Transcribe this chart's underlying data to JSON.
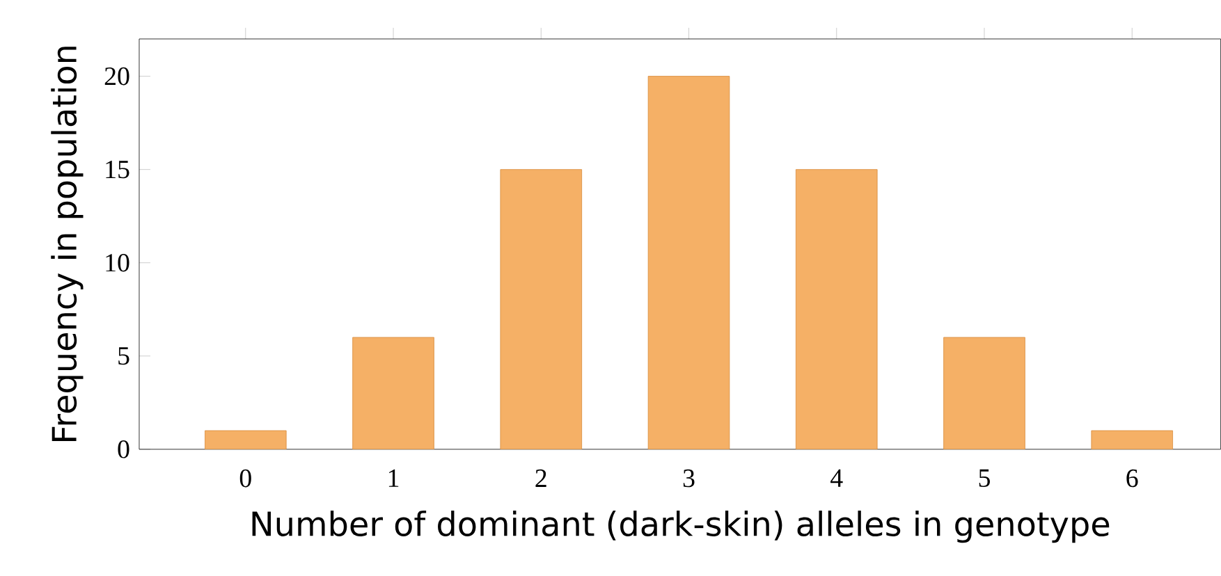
{
  "chart_data": {
    "type": "bar",
    "xlabel": "Number of dominant (dark-skin) alleles in genotype",
    "ylabel": "Frequency in population",
    "categories": [
      "0",
      "1",
      "2",
      "3",
      "4",
      "5",
      "6"
    ],
    "values": [
      1,
      6,
      15,
      20,
      15,
      6,
      1
    ],
    "color": "#f5b066",
    "ylim": [
      0,
      22
    ],
    "yticks": [
      0,
      5,
      10,
      15,
      20
    ],
    "grid": false
  }
}
